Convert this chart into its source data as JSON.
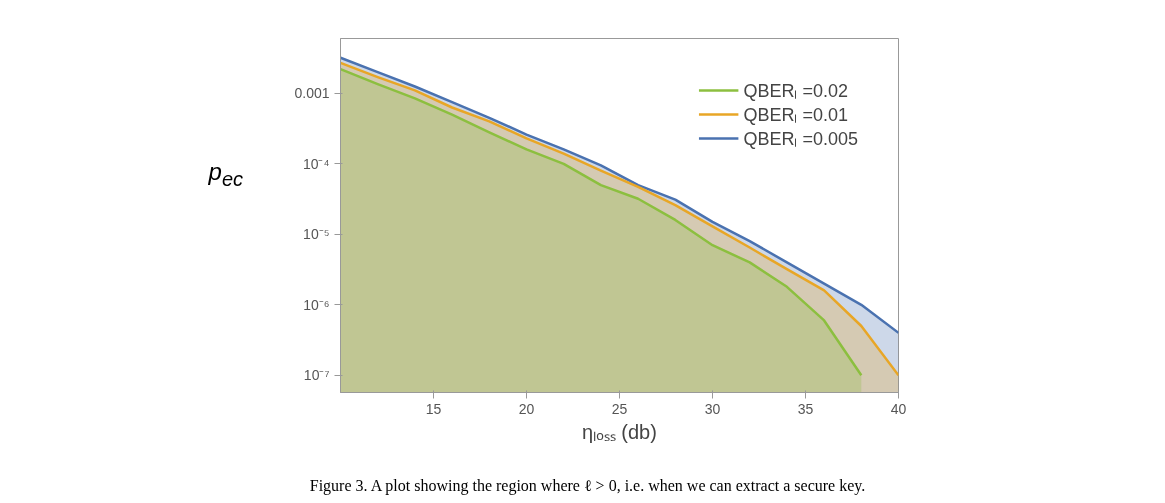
{
  "chart_data": {
    "type": "area",
    "xlabel": "ηₗₒₛₛ (db)",
    "ylabel": "p$_{ec}$",
    "x": [
      10,
      12,
      14,
      16,
      18,
      20,
      22,
      24,
      26,
      28,
      30,
      32,
      34,
      36,
      38,
      40
    ],
    "series": [
      {
        "name": "QBERₗ =0.02",
        "color": "#8cbf3f",
        "values": [
          0.0022,
          0.00135,
          0.00085,
          0.0005,
          0.00028,
          0.00016,
          0.0001,
          5e-05,
          3.2e-05,
          1.6e-05,
          7e-06,
          4e-06,
          1.8e-06,
          6e-07,
          1e-07,
          null
        ]
      },
      {
        "name": "QBERₗ =0.01",
        "color": "#e8a626",
        "values": [
          0.0027,
          0.0017,
          0.0011,
          0.00063,
          0.0004,
          0.00023,
          0.00014,
          8e-05,
          4.7e-05,
          2.6e-05,
          1.3e-05,
          6.5e-06,
          3.2e-06,
          1.6e-06,
          5e-07,
          1e-07
        ]
      },
      {
        "name": "QBERₗ =0.005",
        "color": "#4a72b0",
        "values": [
          0.0032,
          0.002,
          0.00125,
          0.00075,
          0.00045,
          0.00026,
          0.00016,
          9.5e-05,
          5e-05,
          3.1e-05,
          1.5e-05,
          8e-06,
          4e-06,
          2e-06,
          1e-06,
          4e-07
        ]
      }
    ],
    "log": "y",
    "xlim": [
      10,
      40
    ],
    "ylim": [
      5.7e-08,
      0.006
    ],
    "xticks": [
      15,
      20,
      25,
      30,
      35,
      40
    ],
    "yticks": [
      {
        "value": 0.001,
        "label": "0.001"
      },
      {
        "value": 0.0001,
        "label": "10⁻⁴"
      },
      {
        "value": 1e-05,
        "label": "10⁻⁵"
      },
      {
        "value": 1e-06,
        "label": "10⁻⁶"
      },
      {
        "value": 1e-07,
        "label": "10⁻⁷"
      }
    ],
    "legend": "top right",
    "grid": false,
    "annotations": [
      "Figure 3.  A plot showing the region where ℓ > 0, i.e. when we can extract a secure key."
    ]
  }
}
